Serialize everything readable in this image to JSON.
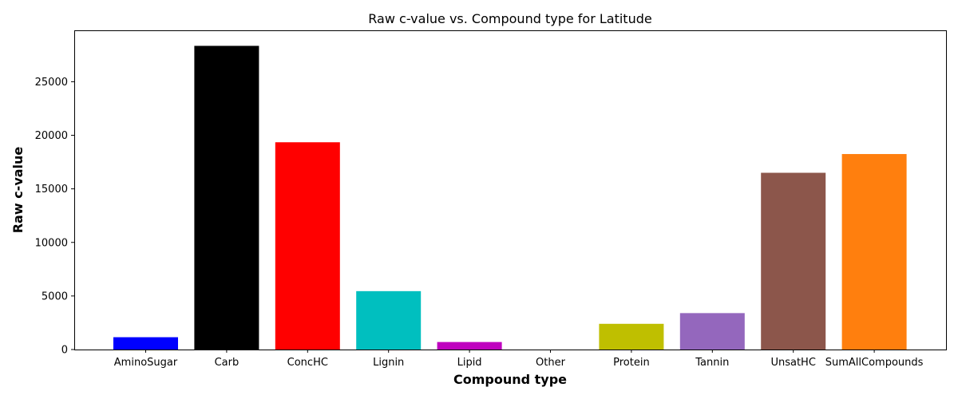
{
  "chart_data": {
    "type": "bar",
    "title": "Raw c-value vs. Compound type for Latitude",
    "xlabel": "Compound type",
    "ylabel": "Raw c-value",
    "categories": [
      "AminoSugar",
      "Carb",
      "ConcHC",
      "Lignin",
      "Lipid",
      "Other",
      "Protein",
      "Tannin",
      "UnsatHC",
      "SumAllCompounds"
    ],
    "values": [
      1150,
      28350,
      19350,
      5450,
      700,
      0,
      2400,
      3400,
      16500,
      18250
    ],
    "colors": [
      "#0000ff",
      "#000000",
      "#ff0000",
      "#00bfbf",
      "#bf00bf",
      "#bfbf00",
      "#bfbf00",
      "#9467bd",
      "#8c564b",
      "#ff7f0e"
    ],
    "ylim": [
      0,
      29800
    ],
    "yticks": [
      0,
      5000,
      10000,
      15000,
      20000,
      25000
    ],
    "grid": false,
    "legend": "none"
  }
}
